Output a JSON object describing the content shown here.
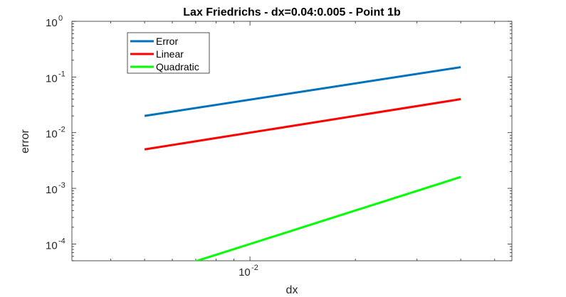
{
  "chart_data": {
    "type": "line",
    "title": "Lax Friedrichs - dx=0.04:0.005 - Point 1b",
    "xlabel": "dx",
    "ylabel": "error",
    "xscale": "log",
    "yscale": "log",
    "xlim": [
      0.0031,
      0.056
    ],
    "ylim": [
      5e-05,
      1
    ],
    "x_ticks": [
      {
        "base": "10",
        "exp": "-2",
        "value": 0.01
      }
    ],
    "y_ticks": [
      {
        "base": "10",
        "exp": "0",
        "value": 1
      },
      {
        "base": "10",
        "exp": "-1",
        "value": 0.1
      },
      {
        "base": "10",
        "exp": "-2",
        "value": 0.01
      },
      {
        "base": "10",
        "exp": "-3",
        "value": 0.001
      },
      {
        "base": "10",
        "exp": "-4",
        "value": 0.0001
      }
    ],
    "legend_position": "top-left",
    "series": [
      {
        "name": "Error",
        "color": "#0072BD",
        "x": [
          0.005,
          0.04
        ],
        "y": [
          0.02,
          0.15
        ]
      },
      {
        "name": "Linear",
        "color": "#FF0000",
        "x": [
          0.005,
          0.04
        ],
        "y": [
          0.005,
          0.04
        ]
      },
      {
        "name": "Quadratic",
        "color": "#00FF00",
        "x": [
          0.005,
          0.04
        ],
        "y": [
          2.5e-05,
          0.0016
        ]
      }
    ]
  }
}
